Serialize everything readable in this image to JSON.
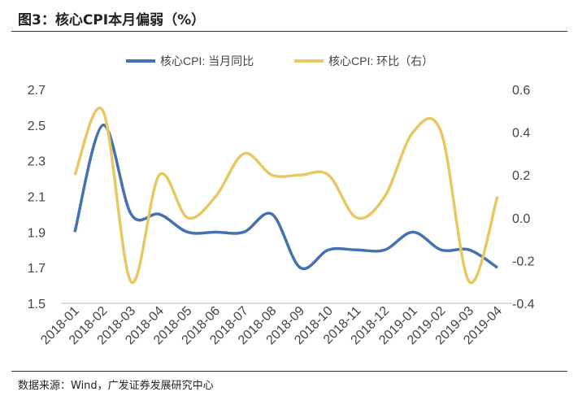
{
  "title": "图3：核心CPI本月偏弱（%）",
  "source": "数据来源：Wind，广发证券发展研究中心",
  "chart_data": {
    "type": "line",
    "title": "核心CPI本月偏弱（%）",
    "categories": [
      "2018-01",
      "2018-02",
      "2018-03",
      "2018-04",
      "2018-05",
      "2018-06",
      "2018-07",
      "2018-08",
      "2018-09",
      "2018-10",
      "2018-11",
      "2018-12",
      "2019-01",
      "2019-02",
      "2019-03",
      "2019-04"
    ],
    "series": [
      {
        "name": "核心CPI: 当月同比",
        "axis": "left",
        "color": "#4472B0",
        "values": [
          1.9,
          2.5,
          2.0,
          2.0,
          1.9,
          1.9,
          1.9,
          2.0,
          1.7,
          1.8,
          1.8,
          1.8,
          1.9,
          1.8,
          1.8,
          1.7
        ]
      },
      {
        "name": "核心CPI: 环比（右）",
        "axis": "right",
        "color": "#E6C865",
        "values": [
          0.2,
          0.5,
          -0.3,
          0.2,
          0.0,
          0.1,
          0.3,
          0.2,
          0.2,
          0.2,
          0.0,
          0.1,
          0.4,
          0.4,
          -0.3,
          0.1
        ]
      }
    ],
    "left_axis": {
      "ylim": [
        1.5,
        2.7
      ],
      "ticks": [
        "1.5",
        "1.7",
        "1.9",
        "2.1",
        "2.3",
        "2.5",
        "2.7"
      ]
    },
    "right_axis": {
      "ylim": [
        -0.4,
        0.6
      ],
      "ticks": [
        "-0.4",
        "-0.2",
        "0.0",
        "0.2",
        "0.4",
        "0.6"
      ]
    },
    "legend": "top-center",
    "grid": false
  }
}
